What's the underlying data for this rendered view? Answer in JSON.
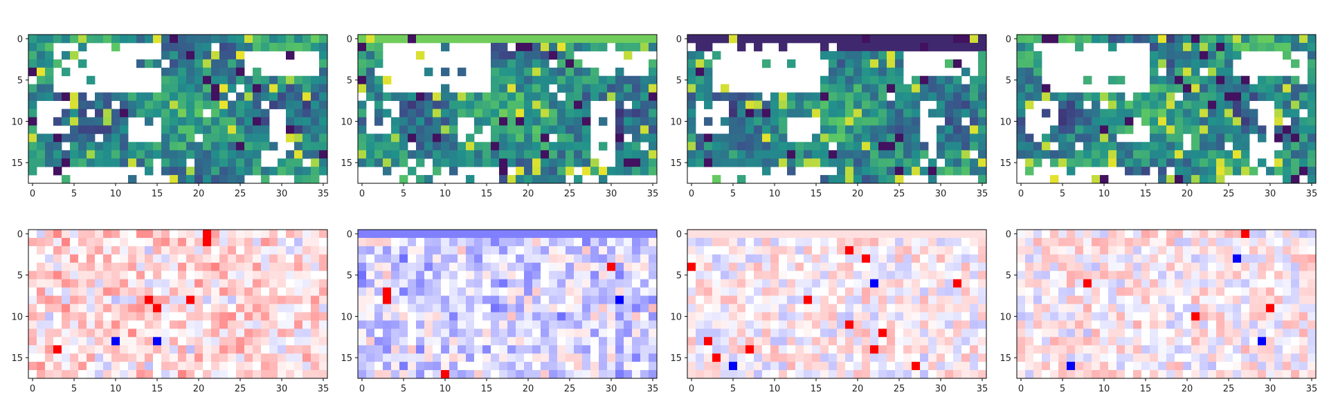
{
  "chart_data": [
    {
      "type": "heatmap",
      "row": "top",
      "colormap": "viridis",
      "grid": false,
      "rows": 18,
      "cols": 36,
      "xlim": [
        -0.5,
        35.5
      ],
      "ylim": [
        17.5,
        -0.5
      ],
      "x_ticks": [
        0,
        5,
        10,
        15,
        20,
        25,
        30,
        35
      ],
      "y_ticks": [
        0,
        5,
        10,
        15
      ],
      "missing_color": "#ffffff",
      "colormap_colors": [
        "#440154",
        "#3b528b",
        "#21918c",
        "#5ec962",
        "#fde725"
      ],
      "density": 0.66
    },
    {
      "type": "heatmap",
      "row": "top",
      "colormap": "viridis",
      "grid": false,
      "rows": 18,
      "cols": 36,
      "xlim": [
        -0.5,
        35.5
      ],
      "ylim": [
        17.5,
        -0.5
      ],
      "x_ticks": [
        0,
        5,
        10,
        15,
        20,
        25,
        30,
        35
      ],
      "y_ticks": [
        0,
        5,
        10,
        15
      ],
      "missing_color": "#ffffff",
      "colormap_colors": [
        "#440154",
        "#3b528b",
        "#21918c",
        "#5ec962",
        "#fde725"
      ],
      "density": 0.64
    },
    {
      "type": "heatmap",
      "row": "top",
      "colormap": "viridis",
      "grid": false,
      "rows": 18,
      "cols": 36,
      "xlim": [
        -0.5,
        35.5
      ],
      "ylim": [
        17.5,
        -0.5
      ],
      "x_ticks": [
        0,
        5,
        10,
        15,
        20,
        25,
        30,
        35
      ],
      "y_ticks": [
        0,
        5,
        10,
        15
      ],
      "missing_color": "#ffffff",
      "colormap_colors": [
        "#440154",
        "#3b528b",
        "#21918c",
        "#5ec962",
        "#fde725"
      ],
      "density": 0.68
    },
    {
      "type": "heatmap",
      "row": "top",
      "colormap": "viridis",
      "grid": false,
      "rows": 18,
      "cols": 36,
      "xlim": [
        -0.5,
        35.5
      ],
      "ylim": [
        17.5,
        -0.5
      ],
      "x_ticks": [
        0,
        5,
        10,
        15,
        20,
        25,
        30,
        35
      ],
      "y_ticks": [
        0,
        5,
        10,
        15
      ],
      "missing_color": "#ffffff",
      "colormap_colors": [
        "#440154",
        "#3b528b",
        "#21918c",
        "#5ec962",
        "#fde725"
      ],
      "density": 0.65
    },
    {
      "type": "heatmap",
      "row": "bottom",
      "colormap": "bwr",
      "grid": false,
      "rows": 18,
      "cols": 36,
      "xlim": [
        -0.5,
        35.5
      ],
      "ylim": [
        17.5,
        -0.5
      ],
      "x_ticks": [
        0,
        5,
        10,
        15,
        20,
        25,
        30,
        35
      ],
      "y_ticks": [
        0,
        5,
        10,
        15
      ],
      "colormap_colors": [
        "#0000ff",
        "#ffffff",
        "#ff0000"
      ],
      "bias": 0.25
    },
    {
      "type": "heatmap",
      "row": "bottom",
      "colormap": "bwr",
      "grid": false,
      "rows": 18,
      "cols": 36,
      "xlim": [
        -0.5,
        35.5
      ],
      "ylim": [
        17.5,
        -0.5
      ],
      "x_ticks": [
        0,
        5,
        10,
        15,
        20,
        25,
        30,
        35
      ],
      "y_ticks": [
        0,
        5,
        10,
        15
      ],
      "colormap_colors": [
        "#0000ff",
        "#ffffff",
        "#ff0000"
      ],
      "bias": -0.3
    },
    {
      "type": "heatmap",
      "row": "bottom",
      "colormap": "bwr",
      "grid": false,
      "rows": 18,
      "cols": 36,
      "xlim": [
        -0.5,
        35.5
      ],
      "ylim": [
        17.5,
        -0.5
      ],
      "x_ticks": [
        0,
        5,
        10,
        15,
        20,
        25,
        30,
        35
      ],
      "y_ticks": [
        0,
        5,
        10,
        15
      ],
      "colormap_colors": [
        "#0000ff",
        "#ffffff",
        "#ff0000"
      ],
      "bias": 0.05
    },
    {
      "type": "heatmap",
      "row": "bottom",
      "colormap": "bwr",
      "grid": false,
      "rows": 18,
      "cols": 36,
      "xlim": [
        -0.5,
        35.5
      ],
      "ylim": [
        17.5,
        -0.5
      ],
      "x_ticks": [
        0,
        5,
        10,
        15,
        20,
        25,
        30,
        35
      ],
      "y_ticks": [
        0,
        5,
        10,
        15
      ],
      "colormap_colors": [
        "#0000ff",
        "#ffffff",
        "#ff0000"
      ],
      "bias": 0.08
    }
  ]
}
